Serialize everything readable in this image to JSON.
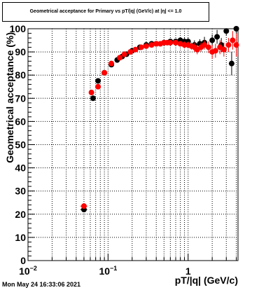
{
  "header": {
    "title": "Geometrical acceptance for Primary vs pT/|q| (GeV/c) at |η| <= 1.0"
  },
  "footer": {
    "timestamp": "Mon May 24 16:33:06 2021"
  },
  "chart_data": {
    "type": "scatter",
    "title": "Geometrical acceptance for Primary vs pT/|q| (GeV/c) at |η| <= 1.0",
    "xlabel": "pT/|q| (GeV/c)",
    "ylabel": "Geometrical acceptance (%)",
    "xscale": "log",
    "xlim": [
      0.01,
      4.2
    ],
    "ylim": [
      0,
      100
    ],
    "grid": true,
    "x_ticks": [
      {
        "value": 0.01,
        "label": "10",
        "sup": "−2"
      },
      {
        "value": 0.1,
        "label": "10",
        "sup": "−1"
      },
      {
        "value": 1,
        "label": "1",
        "sup": ""
      }
    ],
    "y_ticks": [
      0,
      10,
      20,
      30,
      40,
      50,
      60,
      70,
      80,
      90,
      100
    ],
    "series": [
      {
        "color": "#000000",
        "points": [
          {
            "x": 0.05,
            "y": 22,
            "xerr": 0.005,
            "yerr": 1
          },
          {
            "x": 0.065,
            "y": 70,
            "xerr": 0.003,
            "yerr": 1
          },
          {
            "x": 0.075,
            "y": 77.5,
            "xerr": 0.003,
            "yerr": 1
          },
          {
            "x": 0.09,
            "y": 81,
            "xerr": 0.004,
            "yerr": 1
          },
          {
            "x": 0.11,
            "y": 84.5,
            "xerr": 0.005,
            "yerr": 1
          },
          {
            "x": 0.13,
            "y": 86.5,
            "xerr": 0.005,
            "yerr": 1
          },
          {
            "x": 0.15,
            "y": 88,
            "xerr": 0.005,
            "yerr": 1
          },
          {
            "x": 0.17,
            "y": 89,
            "xerr": 0.005,
            "yerr": 1
          },
          {
            "x": 0.2,
            "y": 90.5,
            "xerr": 0.01,
            "yerr": 1
          },
          {
            "x": 0.25,
            "y": 92,
            "xerr": 0.01,
            "yerr": 1
          },
          {
            "x": 0.3,
            "y": 93,
            "xerr": 0.01,
            "yerr": 1
          },
          {
            "x": 0.35,
            "y": 93.5,
            "xerr": 0.01,
            "yerr": 1
          },
          {
            "x": 0.4,
            "y": 93.5,
            "xerr": 0.01,
            "yerr": 1
          },
          {
            "x": 0.5,
            "y": 94,
            "xerr": 0.02,
            "yerr": 1
          },
          {
            "x": 0.6,
            "y": 94.5,
            "xerr": 0.02,
            "yerr": 1
          },
          {
            "x": 0.7,
            "y": 94.5,
            "xerr": 0.02,
            "yerr": 1.2
          },
          {
            "x": 0.8,
            "y": 95,
            "xerr": 0.02,
            "yerr": 1.2
          },
          {
            "x": 0.9,
            "y": 94.5,
            "xerr": 0.02,
            "yerr": 1.5
          },
          {
            "x": 1.0,
            "y": 94.5,
            "xerr": 0.03,
            "yerr": 1.5
          },
          {
            "x": 1.2,
            "y": 93,
            "xerr": 0.03,
            "yerr": 2
          },
          {
            "x": 1.4,
            "y": 93.5,
            "xerr": 0.03,
            "yerr": 2
          },
          {
            "x": 1.6,
            "y": 94,
            "xerr": 0.04,
            "yerr": 2.5
          },
          {
            "x": 2.0,
            "y": 95,
            "xerr": 0.05,
            "yerr": 2.5
          },
          {
            "x": 2.3,
            "y": 96.5,
            "xerr": 0.05,
            "yerr": 3
          },
          {
            "x": 2.6,
            "y": 93,
            "xerr": 0.05,
            "yerr": 3
          },
          {
            "x": 3.0,
            "y": 99,
            "xerr": 0.1,
            "yerr": 2
          },
          {
            "x": 3.5,
            "y": 85,
            "xerr": 0.1,
            "yerr": 5
          },
          {
            "x": 4.0,
            "y": 100,
            "xerr": 0.1,
            "yerr": 2
          }
        ]
      },
      {
        "color": "#ff0000",
        "points": [
          {
            "x": 0.05,
            "y": 23.5,
            "xerr": 0.005,
            "yerr": 1
          },
          {
            "x": 0.062,
            "y": 72.5,
            "xerr": 0.003,
            "yerr": 1
          },
          {
            "x": 0.075,
            "y": 75,
            "xerr": 0.003,
            "yerr": 1
          },
          {
            "x": 0.09,
            "y": 81,
            "xerr": 0.004,
            "yerr": 1
          },
          {
            "x": 0.11,
            "y": 85,
            "xerr": 0.005,
            "yerr": 1
          },
          {
            "x": 0.14,
            "y": 87.5,
            "xerr": 0.005,
            "yerr": 1
          },
          {
            "x": 0.16,
            "y": 89,
            "xerr": 0.005,
            "yerr": 1
          },
          {
            "x": 0.19,
            "y": 90,
            "xerr": 0.005,
            "yerr": 1
          },
          {
            "x": 0.22,
            "y": 91,
            "xerr": 0.01,
            "yerr": 1
          },
          {
            "x": 0.26,
            "y": 92,
            "xerr": 0.01,
            "yerr": 1
          },
          {
            "x": 0.3,
            "y": 92.5,
            "xerr": 0.01,
            "yerr": 1
          },
          {
            "x": 0.35,
            "y": 93,
            "xerr": 0.01,
            "yerr": 1
          },
          {
            "x": 0.4,
            "y": 93.5,
            "xerr": 0.01,
            "yerr": 1
          },
          {
            "x": 0.45,
            "y": 93.5,
            "xerr": 0.02,
            "yerr": 1
          },
          {
            "x": 0.5,
            "y": 94,
            "xerr": 0.02,
            "yerr": 1
          },
          {
            "x": 0.55,
            "y": 94,
            "xerr": 0.02,
            "yerr": 1
          },
          {
            "x": 0.6,
            "y": 94,
            "xerr": 0.02,
            "yerr": 1
          },
          {
            "x": 0.7,
            "y": 94,
            "xerr": 0.02,
            "yerr": 1.2
          },
          {
            "x": 0.8,
            "y": 93.5,
            "xerr": 0.02,
            "yerr": 1.2
          },
          {
            "x": 0.9,
            "y": 93,
            "xerr": 0.02,
            "yerr": 1.5
          },
          {
            "x": 1.0,
            "y": 93,
            "xerr": 0.03,
            "yerr": 1.5
          },
          {
            "x": 1.1,
            "y": 92.5,
            "xerr": 0.03,
            "yerr": 1.5
          },
          {
            "x": 1.2,
            "y": 92,
            "xerr": 0.03,
            "yerr": 2
          },
          {
            "x": 1.3,
            "y": 91,
            "xerr": 0.03,
            "yerr": 2
          },
          {
            "x": 1.45,
            "y": 92,
            "xerr": 0.03,
            "yerr": 2
          },
          {
            "x": 1.6,
            "y": 93,
            "xerr": 0.04,
            "yerr": 2
          },
          {
            "x": 1.8,
            "y": 92,
            "xerr": 0.04,
            "yerr": 2.5
          },
          {
            "x": 2.0,
            "y": 90,
            "xerr": 0.05,
            "yerr": 3
          },
          {
            "x": 2.2,
            "y": 90.5,
            "xerr": 0.05,
            "yerr": 3
          },
          {
            "x": 2.5,
            "y": 92,
            "xerr": 0.05,
            "yerr": 3
          },
          {
            "x": 2.8,
            "y": 91,
            "xerr": 0.05,
            "yerr": 3
          },
          {
            "x": 3.2,
            "y": 93,
            "xerr": 0.1,
            "yerr": 3
          },
          {
            "x": 3.6,
            "y": 95,
            "xerr": 0.1,
            "yerr": 4
          },
          {
            "x": 4.0,
            "y": 93,
            "xerr": 0.1,
            "yerr": 5
          }
        ]
      }
    ]
  }
}
